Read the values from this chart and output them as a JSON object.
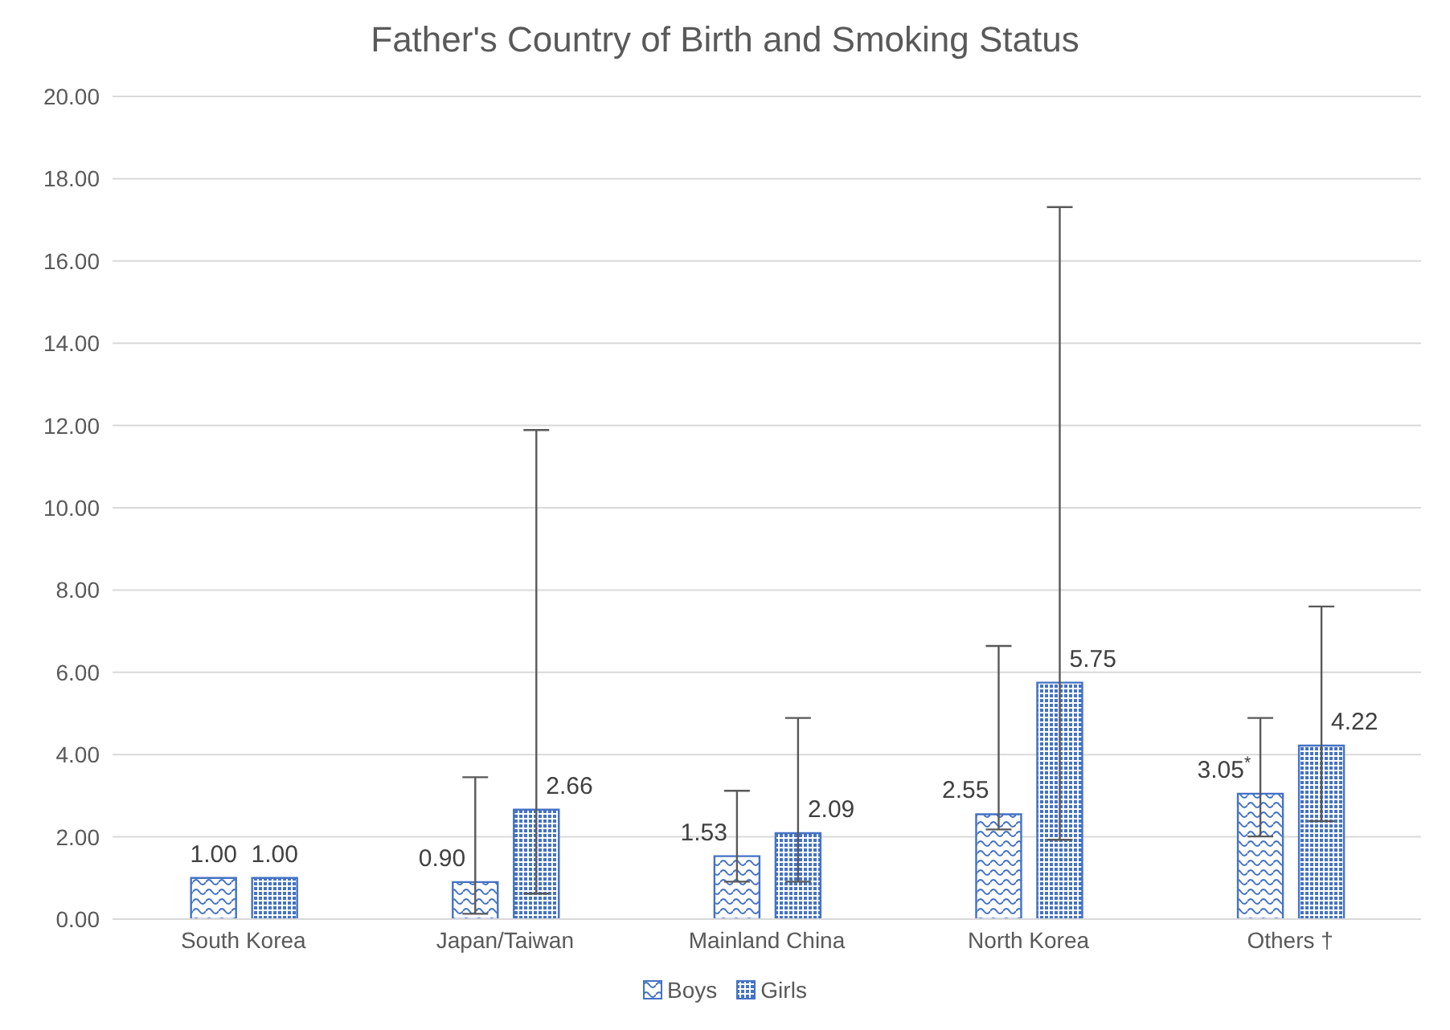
{
  "chart_data": {
    "type": "bar",
    "title": "Father's Country of Birth and Smoking Status",
    "categories": [
      "South Korea",
      "Japan/Taiwan",
      "Mainland China",
      "North Korea",
      "Others †"
    ],
    "series": [
      {
        "name": "Boys",
        "color": "#4472c4",
        "values": [
          1.0,
          0.9,
          1.53,
          2.55,
          3.05
        ],
        "errors": [
          null,
          [
            0.13,
            3.45
          ],
          [
            0.91,
            3.12
          ],
          [
            2.18,
            6.64
          ],
          [
            2.01,
            4.89
          ]
        ],
        "value_labels": [
          "1.00",
          "0.90",
          "1.53",
          "2.55",
          "3.05$^{*}$"
        ]
      },
      {
        "name": "Girls",
        "color": "#4472c4",
        "values": [
          1.0,
          2.66,
          2.09,
          5.75,
          4.22
        ],
        "errors": [
          null,
          [
            0.62,
            11.89
          ],
          [
            0.91,
            4.89
          ],
          [
            1.93,
            17.31
          ],
          [
            2.38,
            7.6
          ]
        ],
        "value_labels": [
          "1.00",
          "2.66",
          "2.09",
          "5.75",
          "4.22"
        ]
      }
    ],
    "ylim": [
      0,
      20
    ],
    "yticks": [
      {
        "value": 0,
        "label": "0.00"
      },
      {
        "value": 2,
        "label": "2.00"
      },
      {
        "value": 4,
        "label": "4.00"
      },
      {
        "value": 6,
        "label": "6.00"
      },
      {
        "value": 8,
        "label": "8.00"
      },
      {
        "value": 10,
        "label": "10.00"
      },
      {
        "value": 12,
        "label": "12.00"
      },
      {
        "value": 14,
        "label": "14.00"
      },
      {
        "value": 16,
        "label": "16.00"
      },
      {
        "value": 18,
        "label": "18.00"
      },
      {
        "value": 20,
        "label": "20.00"
      }
    ],
    "grid": "y",
    "legend": "bottom"
  }
}
